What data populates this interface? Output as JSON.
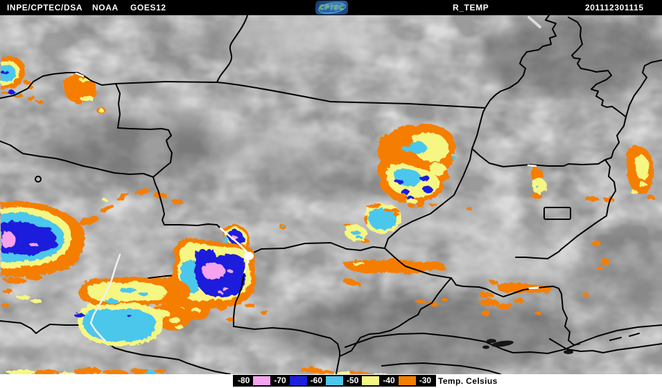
{
  "header": {
    "institution": "INPE/CPTEC/DSA",
    "agency": "NOAA",
    "satellite": "GOES12",
    "logo_text": "CPTEC",
    "product": "R_TEMP",
    "timestamp": "201112301115"
  },
  "legend": {
    "title": "Temp. Celsius",
    "items": [
      {
        "type": "label",
        "text": "-80"
      },
      {
        "type": "swatch",
        "color": "#f5a2ef",
        "range": "-80 to -70"
      },
      {
        "type": "label",
        "text": "-70"
      },
      {
        "type": "swatch",
        "color": "#1c1fdd",
        "range": "-70 to -60"
      },
      {
        "type": "label",
        "text": "-60"
      },
      {
        "type": "swatch",
        "color": "#4cc7ec",
        "range": "-60 to -50"
      },
      {
        "type": "label",
        "text": "-50"
      },
      {
        "type": "swatch",
        "color": "#f6f683",
        "range": "-50 to -40"
      },
      {
        "type": "label",
        "text": "-40"
      },
      {
        "type": "swatch",
        "color": "#f57e00",
        "range": "-40 to -30"
      },
      {
        "type": "label",
        "text": "-30"
      }
    ]
  },
  "map": {
    "palette": {
      "pink": "#f5a2ef",
      "blue": "#1c1fdd",
      "cyan": "#4cc7ec",
      "yellow": "#f6f683",
      "orange": "#f57e00",
      "border": "#000000",
      "borderOverCloud": "#ffffff"
    }
  }
}
